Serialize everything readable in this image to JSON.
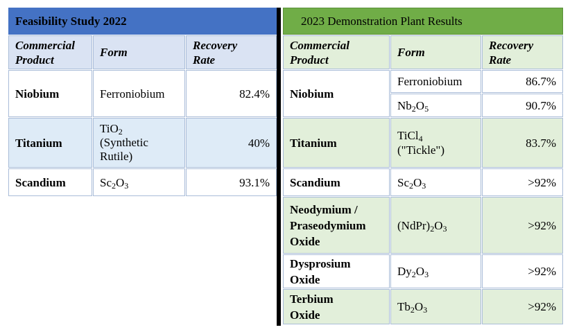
{
  "feasibility": {
    "title": "Feasibility Study 2022",
    "headers": [
      "Commercial",
      "Product",
      "Form",
      "Recovery",
      "Rate"
    ],
    "rows": [
      {
        "product": "Niobium",
        "form": "Ferroniobium",
        "rate": "82.4%"
      },
      {
        "product": "Titanium",
        "form_base": "TiO",
        "form_sub": "2",
        "form_line2": "(Synthetic",
        "form_line3": "Rutile)",
        "rate": "40%"
      },
      {
        "product": "Scandium",
        "form_a": "Sc",
        "form_s1": "2",
        "form_b": "O",
        "form_s2": "3",
        "rate": "93.1%"
      }
    ]
  },
  "demonstration": {
    "title": "2023 Demonstration Plant Results",
    "headers": [
      "Commercial",
      "Product",
      "Form",
      "Recovery",
      "Rate"
    ],
    "niobium": {
      "product": "Niobium",
      "form1": "Ferroniobium",
      "rate1": "86.7%",
      "form2_a": "Nb",
      "form2_s1": "2",
      "form2_b": "O",
      "form2_s2": "5",
      "rate2": "90.7%"
    },
    "titanium": {
      "product": "Titanium",
      "form_a": "TiCl",
      "form_s": "4",
      "form_line2": "(\"Tickle\")",
      "rate": "83.7%"
    },
    "scandium": {
      "product": "Scandium",
      "form_a": "Sc",
      "form_s1": "2",
      "form_b": "O",
      "form_s2": "3",
      "rate": ">92%"
    },
    "neodymium": {
      "line1": "Neodymium /",
      "line2": "Praseodymium",
      "line3": "Oxide",
      "form_a": "(NdPr)",
      "form_s1": "2",
      "form_b": "O",
      "form_s2": "3",
      "rate": ">92%"
    },
    "dysprosium": {
      "line1": "Dysprosium",
      "line2": "Oxide",
      "form_a": "Dy",
      "form_s1": "2",
      "form_b": "O",
      "form_s2": "3",
      "rate": ">92%"
    },
    "terbium": {
      "line1": "Terbium",
      "line2": "Oxide",
      "form_a": "Tb",
      "form_s1": "2",
      "form_b": "O",
      "form_s2": "3",
      "rate": ">92%"
    }
  },
  "colors": {
    "blue_header": "#4472c4",
    "green_header": "#70ad47",
    "divider": "#000000"
  }
}
